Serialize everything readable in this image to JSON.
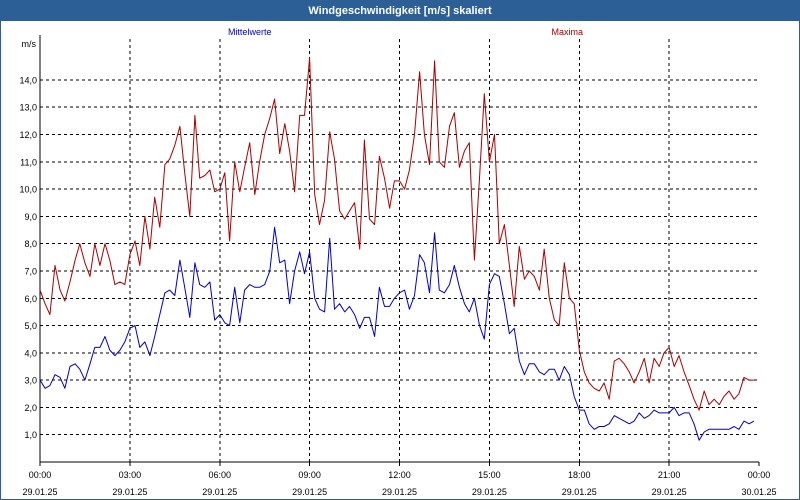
{
  "window": {
    "title": "Windgeschwindigkeit [m/s] skaliert"
  },
  "chart_data": {
    "type": "line",
    "title": "Windgeschwindigkeit [m/s] skaliert",
    "ylabel": "m/s",
    "xlabel": "",
    "ylim": [
      0,
      15.5
    ],
    "xlim": [
      0,
      24
    ],
    "grid": true,
    "legend_placement": "top",
    "y_ticks": [
      "1,0",
      "2,0",
      "3,0",
      "4,0",
      "5,0",
      "6,0",
      "7,0",
      "8,0",
      "9,0",
      "10,0",
      "11,0",
      "12,0",
      "13,0",
      "14,0"
    ],
    "x_ticks": [
      {
        "time": "00:00",
        "date": "29.01.25"
      },
      {
        "time": "03:00",
        "date": "29.01.25"
      },
      {
        "time": "06:00",
        "date": "29.01.25"
      },
      {
        "time": "09:00",
        "date": "29.01.25"
      },
      {
        "time": "12:00",
        "date": "29.01.25"
      },
      {
        "time": "15:00",
        "date": "29.01.25"
      },
      {
        "time": "18:00",
        "date": "29.01.25"
      },
      {
        "time": "21:00",
        "date": "29.01.25"
      },
      {
        "time": "00:00",
        "date": "30.01.25"
      }
    ],
    "series": [
      {
        "name": "Mittelwerte",
        "color": "#0000cc",
        "x": [
          0,
          0.17,
          0.33,
          0.5,
          0.67,
          0.83,
          1,
          1.17,
          1.33,
          1.5,
          1.67,
          1.83,
          2,
          2.17,
          2.33,
          2.5,
          2.67,
          2.83,
          3,
          3.17,
          3.33,
          3.5,
          3.67,
          3.83,
          4,
          4.17,
          4.33,
          4.5,
          4.67,
          4.83,
          5,
          5.17,
          5.33,
          5.5,
          5.67,
          5.83,
          6,
          6.17,
          6.33,
          6.5,
          6.67,
          6.83,
          7,
          7.17,
          7.33,
          7.5,
          7.67,
          7.83,
          8,
          8.17,
          8.33,
          8.5,
          8.67,
          8.83,
          9,
          9.17,
          9.33,
          9.5,
          9.67,
          9.83,
          10,
          10.17,
          10.33,
          10.5,
          10.67,
          10.83,
          11,
          11.17,
          11.33,
          11.5,
          11.67,
          11.83,
          12,
          12.17,
          12.33,
          12.5,
          12.67,
          12.83,
          13,
          13.17,
          13.33,
          13.5,
          13.67,
          13.83,
          14,
          14.17,
          14.33,
          14.5,
          14.67,
          14.83,
          15,
          15.17,
          15.33,
          15.5,
          15.67,
          15.83,
          16,
          16.17,
          16.33,
          16.5,
          16.67,
          16.83,
          17,
          17.17,
          17.33,
          17.5,
          17.67,
          17.83,
          18,
          18.17,
          18.33,
          18.5,
          18.67,
          18.83,
          19,
          19.17,
          19.33,
          19.5,
          19.67,
          19.83,
          20,
          20.17,
          20.33,
          20.5,
          20.67,
          20.83,
          21,
          21.17,
          21.33,
          21.5,
          21.67,
          21.83,
          22,
          22.17,
          22.33,
          22.5,
          22.67,
          22.83,
          23,
          23.17,
          23.33,
          23.5,
          23.67,
          23.83
        ],
        "values": [
          3.0,
          2.7,
          2.8,
          3.2,
          3.1,
          2.7,
          3.5,
          3.6,
          3.4,
          3.0,
          3.6,
          4.2,
          4.2,
          4.6,
          4.1,
          3.9,
          4.1,
          4.4,
          4.9,
          5.0,
          4.2,
          4.4,
          3.9,
          4.6,
          5.4,
          6.2,
          6.3,
          6.1,
          7.4,
          6.4,
          5.3,
          7.3,
          6.5,
          6.4,
          6.6,
          5.2,
          5.4,
          5.1,
          5.0,
          6.4,
          5.1,
          6.3,
          6.5,
          6.4,
          6.4,
          6.5,
          7.0,
          8.6,
          7.3,
          7.4,
          5.8,
          7.0,
          7.7,
          6.9,
          7.7,
          6.0,
          5.6,
          5.5,
          8.2,
          5.6,
          5.8,
          5.5,
          5.7,
          5.4,
          4.9,
          5.3,
          5.3,
          4.6,
          6.4,
          5.7,
          5.7,
          6.0,
          6.2,
          6.3,
          5.6,
          6.1,
          7.6,
          7.3,
          6.2,
          8.4,
          6.3,
          6.2,
          6.5,
          7.2,
          6.4,
          5.8,
          5.5,
          6.0,
          5.0,
          4.5,
          6.5,
          6.9,
          6.8,
          5.8,
          4.7,
          4.9,
          3.7,
          3.2,
          3.6,
          3.6,
          3.3,
          3.2,
          3.4,
          3.4,
          3.0,
          3.5,
          3.2,
          2.4,
          1.9,
          1.9,
          1.4,
          1.2,
          1.3,
          1.3,
          1.4,
          1.7,
          1.6,
          1.5,
          1.4,
          1.5,
          1.8,
          1.6,
          1.7,
          1.9,
          1.8,
          1.8,
          1.8,
          2.0,
          1.7,
          1.8,
          1.8,
          1.4,
          0.8,
          1.1,
          1.2,
          1.2,
          1.2,
          1.2,
          1.2,
          1.3,
          1.2,
          1.5,
          1.4,
          1.5
        ]
      },
      {
        "name": "Maxima",
        "color": "#aa0000",
        "x": [
          0,
          0.17,
          0.33,
          0.5,
          0.67,
          0.83,
          1,
          1.17,
          1.33,
          1.5,
          1.67,
          1.83,
          2,
          2.17,
          2.33,
          2.5,
          2.67,
          2.83,
          3,
          3.17,
          3.33,
          3.5,
          3.67,
          3.83,
          4,
          4.17,
          4.33,
          4.5,
          4.67,
          4.83,
          5,
          5.17,
          5.33,
          5.5,
          5.67,
          5.83,
          6,
          6.17,
          6.33,
          6.5,
          6.67,
          6.83,
          7,
          7.17,
          7.33,
          7.5,
          7.67,
          7.83,
          8,
          8.17,
          8.33,
          8.5,
          8.67,
          8.83,
          9,
          9.17,
          9.33,
          9.5,
          9.67,
          9.83,
          10,
          10.17,
          10.33,
          10.5,
          10.67,
          10.83,
          11,
          11.17,
          11.33,
          11.5,
          11.67,
          11.83,
          12,
          12.17,
          12.33,
          12.5,
          12.67,
          12.83,
          13,
          13.17,
          13.33,
          13.5,
          13.67,
          13.83,
          14,
          14.17,
          14.33,
          14.5,
          14.67,
          14.83,
          15,
          15.17,
          15.33,
          15.5,
          15.67,
          15.83,
          16,
          16.17,
          16.33,
          16.5,
          16.67,
          16.83,
          17,
          17.17,
          17.33,
          17.5,
          17.67,
          17.83,
          18,
          18.17,
          18.33,
          18.5,
          18.67,
          18.83,
          19,
          19.17,
          19.33,
          19.5,
          19.67,
          19.83,
          20,
          20.17,
          20.33,
          20.5,
          20.67,
          20.83,
          21,
          21.17,
          21.33,
          21.5,
          21.67,
          21.83,
          22,
          22.17,
          22.33,
          22.5,
          22.67,
          22.83,
          23,
          23.17,
          23.33,
          23.5,
          23.67,
          23.83
        ],
        "values": [
          6.3,
          5.8,
          5.4,
          7.2,
          6.3,
          5.9,
          6.6,
          7.4,
          8.0,
          7.3,
          6.8,
          8.0,
          7.2,
          8.0,
          7.4,
          6.5,
          6.6,
          6.5,
          7.6,
          8.1,
          7.2,
          9.0,
          7.8,
          9.7,
          8.6,
          10.9,
          11.1,
          11.6,
          12.3,
          10.6,
          9.0,
          12.7,
          10.4,
          10.5,
          10.7,
          9.9,
          10.0,
          10.6,
          8.1,
          11.0,
          9.9,
          10.8,
          11.7,
          9.8,
          11.0,
          12.0,
          12.6,
          13.3,
          11.3,
          12.4,
          11.4,
          9.9,
          12.7,
          12.7,
          14.8,
          9.8,
          8.7,
          9.6,
          12.1,
          11.1,
          9.2,
          8.9,
          9.2,
          9.5,
          7.8,
          11.8,
          8.9,
          8.7,
          11.2,
          10.4,
          9.3,
          10.3,
          10.3,
          10.0,
          10.7,
          12.0,
          14.3,
          12.0,
          10.9,
          14.7,
          11.0,
          10.8,
          12.3,
          12.8,
          10.8,
          11.4,
          11.7,
          7.4,
          10.4,
          13.5,
          11.0,
          12.0,
          8.0,
          8.7,
          7.2,
          5.7,
          7.9,
          6.7,
          7.0,
          6.8,
          6.3,
          7.8,
          6.0,
          5.2,
          5.0,
          7.3,
          6.0,
          5.8,
          4.1,
          3.3,
          2.9,
          2.7,
          2.6,
          2.9,
          2.3,
          3.7,
          3.8,
          3.6,
          3.3,
          2.9,
          3.3,
          3.8,
          2.9,
          3.8,
          3.5,
          4.0,
          4.2,
          3.5,
          3.9,
          3.3,
          2.8,
          2.3,
          1.9,
          2.6,
          2.1,
          2.3,
          2.1,
          2.4,
          2.6,
          2.3,
          2.5,
          3.1,
          3.0,
          3.0
        ]
      }
    ]
  }
}
